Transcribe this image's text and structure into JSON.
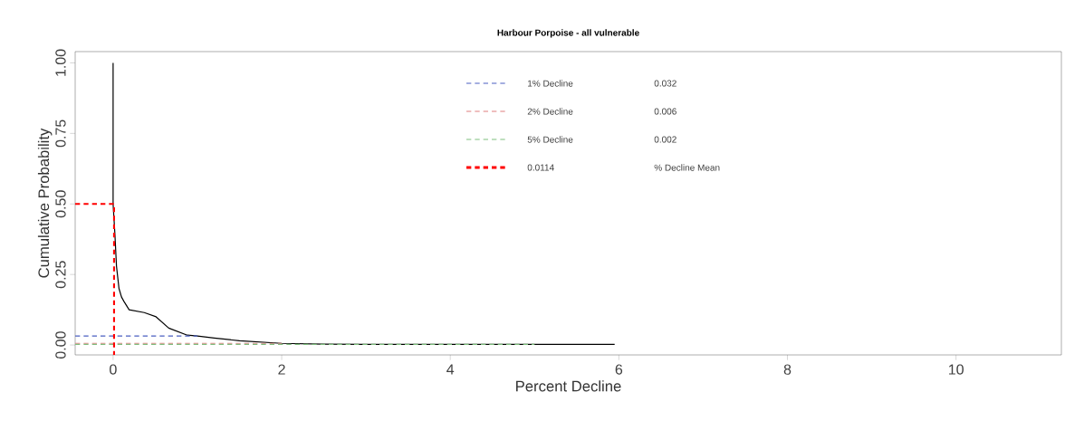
{
  "chart_data": {
    "type": "line",
    "title": "Harbour Porpoise - all vulnerable",
    "xlabel": "Percent Decline",
    "ylabel": "Cumulative Probability",
    "xlim": [
      -0.45,
      11.25
    ],
    "ylim": [
      -0.035,
      1.04
    ],
    "xticks": [
      0,
      2,
      4,
      6,
      8,
      10
    ],
    "yticks": [
      {
        "value": 0,
        "label": "0.00"
      },
      {
        "value": 0.25,
        "label": "0.25"
      },
      {
        "value": 0.5,
        "label": "0.50"
      },
      {
        "value": 0.75,
        "label": "0.75"
      },
      {
        "value": 1,
        "label": "1.00"
      }
    ],
    "grid": false,
    "legend": "top",
    "marker": "none",
    "series": [
      {
        "color": "#000000",
        "line_style": "solid",
        "x": [
          0,
          0,
          0.02,
          0.04,
          0.07,
          0.1,
          0.13,
          0.19,
          0.37,
          0.51,
          0.66,
          0.88,
          1.0,
          1.2,
          1.5,
          2.0,
          2.5,
          3.0,
          4.0,
          5.0,
          5.95
        ],
        "values": [
          1.0,
          0.5,
          0.4,
          0.28,
          0.2,
          0.17,
          0.154,
          0.125,
          0.115,
          0.1,
          0.06,
          0.035,
          0.032,
          0.025,
          0.015,
          0.006,
          0.003,
          0.002,
          0.002,
          0.002,
          0.002
        ]
      },
      {
        "name": "1% Decline",
        "color": "#4a5fc1",
        "line_style": "dashed",
        "x": [
          -0.45,
          1
        ],
        "values": [
          0.032,
          0.032
        ]
      },
      {
        "name": "2% Decline",
        "color": "#e07f7f",
        "line_style": "dashed",
        "x": [
          -0.45,
          2
        ],
        "values": [
          0.006,
          0.006
        ]
      },
      {
        "name": "5% Decline",
        "color": "#7fbf7f",
        "line_style": "dashed",
        "x": [
          -0.45,
          5
        ],
        "values": [
          0.002,
          0.002
        ]
      },
      {
        "name": "0.0114",
        "color": "#ff0000",
        "line_style": "dashed",
        "x": [
          -0.45,
          0.0114,
          0.0114
        ],
        "values": [
          0.5,
          0.5,
          -0.035
        ]
      }
    ],
    "annotations": [
      "0.032",
      "0.006",
      "0.002",
      "% Decline Mean"
    ]
  }
}
